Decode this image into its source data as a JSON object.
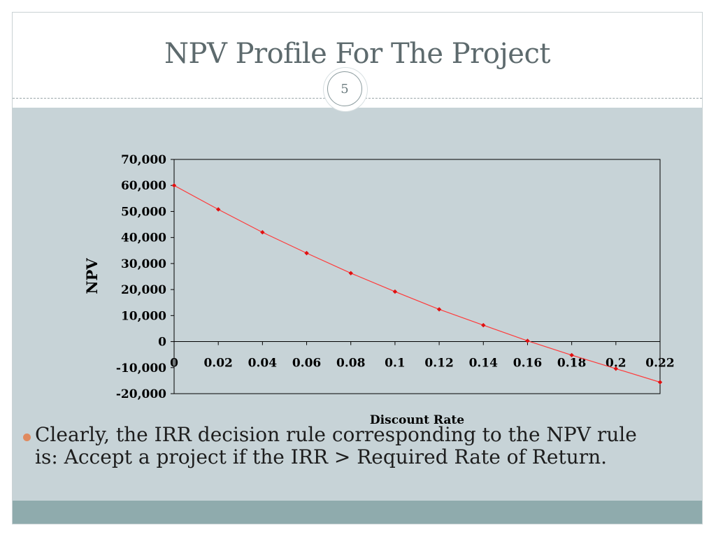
{
  "slide": {
    "title": "NPV Profile For The Project",
    "page_number": "5",
    "bullet": "Clearly, the IRR decision rule corresponding to the NPV rule is: Accept a project if the IRR > Required Rate of Return."
  },
  "colors": {
    "content_bg": "#c7d3d7",
    "footer_band": "#8fabad",
    "series_line": "#ff3a3a",
    "series_marker": "#e01010",
    "bullet": "#e08a5f"
  },
  "chart_data": {
    "type": "line",
    "title": "",
    "xlabel": "Discount Rate",
    "ylabel": "NPV",
    "x": [
      0,
      0.02,
      0.04,
      0.06,
      0.08,
      0.1,
      0.12,
      0.14,
      0.16,
      0.18,
      0.2,
      0.22
    ],
    "x_tick_labels": [
      "0",
      "0.02",
      "0.04",
      "0.06",
      "0.08",
      "0.1",
      "0.12",
      "0.14",
      "0.16",
      "0.18",
      "0.2",
      "0.22"
    ],
    "series": [
      {
        "values": [
          60000,
          50800,
          42000,
          34000,
          26300,
          19200,
          12400,
          6300,
          300,
          -5200,
          -10400,
          -15600
        ]
      }
    ],
    "ylim": [
      -20000,
      70000
    ],
    "y_ticks": [
      70000,
      60000,
      50000,
      40000,
      30000,
      20000,
      10000,
      0,
      -10000,
      -20000
    ],
    "y_tick_labels": [
      "70,000",
      "60,000",
      "50,000",
      "40,000",
      "30,000",
      "20,000",
      "10,000",
      "0",
      "-10,000",
      "-20,000"
    ],
    "xlim": [
      0,
      0.22
    ],
    "grid": false,
    "legend": "none"
  }
}
